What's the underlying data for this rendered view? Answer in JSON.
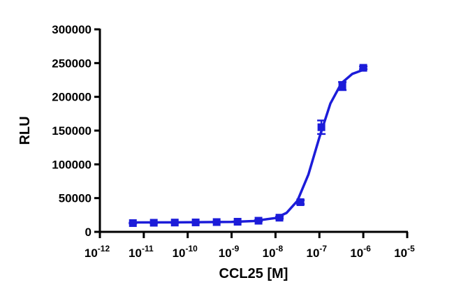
{
  "chart_data": {
    "type": "scatter-fit",
    "x_label": "CCL25 [M]",
    "y_label": "RLU",
    "xscale": "log",
    "xlim": [
      1e-12,
      1e-05
    ],
    "xticks": [
      {
        "value": 1e-12,
        "label": "10",
        "exponent": "-12"
      },
      {
        "value": 1e-11,
        "label": "10",
        "exponent": "-11"
      },
      {
        "value": 1e-10,
        "label": "10",
        "exponent": "-10"
      },
      {
        "value": 1e-09,
        "label": "10",
        "exponent": "-9"
      },
      {
        "value": 1e-08,
        "label": "10",
        "exponent": "-8"
      },
      {
        "value": 1e-07,
        "label": "10",
        "exponent": "-7"
      },
      {
        "value": 1e-06,
        "label": "10",
        "exponent": "-6"
      },
      {
        "value": 1e-05,
        "label": "10",
        "exponent": "-5"
      }
    ],
    "ylim": [
      0,
      300000
    ],
    "yticks": [
      0,
      50000,
      100000,
      150000,
      200000,
      250000,
      300000
    ],
    "grid": false,
    "color": "#1c1cd9",
    "x": [
      5.65e-12,
      1.69e-11,
      5.08e-11,
      1.52e-10,
      4.57e-10,
      1.37e-09,
      4.1e-09,
      1.23e-08,
      3.7e-08,
      1.11e-07,
      3.33e-07,
      1e-06
    ],
    "values": [
      13000,
      13500,
      13800,
      14000,
      14500,
      15000,
      16500,
      21000,
      44000,
      155000,
      216000,
      243000
    ],
    "errors": [
      500,
      500,
      500,
      500,
      500,
      500,
      800,
      1500,
      3000,
      10000,
      6000,
      2000
    ],
    "fit": {
      "x": [
        5.65e-12,
        1e-10,
        1e-09,
        3.16e-09,
        1e-08,
        1.78e-08,
        3.16e-08,
        5.62e-08,
        1e-07,
        1.78e-07,
        3.16e-07,
        5.62e-07,
        1e-06
      ],
      "values": [
        14000,
        14200,
        14800,
        16000,
        20500,
        28000,
        46000,
        85000,
        140000,
        190000,
        220000,
        234000,
        240000
      ]
    }
  }
}
